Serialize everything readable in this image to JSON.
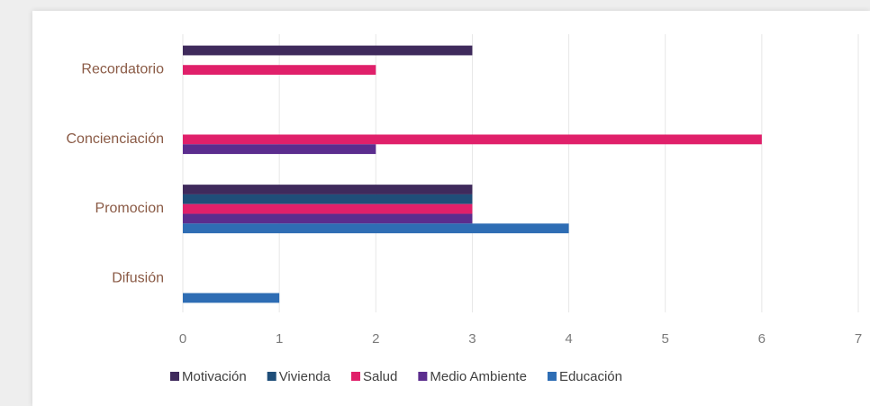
{
  "chart_data": {
    "type": "bar",
    "orientation": "horizontal",
    "categories": [
      "Recordatorio",
      "Concienciación",
      "Promocion",
      "Difusión"
    ],
    "series": [
      {
        "name": "Motivación",
        "color": "#3f2a5c",
        "values": [
          3,
          0,
          3,
          0
        ]
      },
      {
        "name": "Vivienda",
        "color": "#1f4e79",
        "values": [
          0,
          0,
          3,
          0
        ]
      },
      {
        "name": "Salud",
        "color": "#e0206a",
        "values": [
          2,
          6,
          3,
          0
        ]
      },
      {
        "name": "Medio Ambiente",
        "color": "#5b2d8e",
        "values": [
          0,
          2,
          3,
          0
        ]
      },
      {
        "name": "Educación",
        "color": "#2e6db4",
        "values": [
          0,
          0,
          4,
          1
        ]
      }
    ],
    "xlim": [
      0,
      7
    ],
    "xticks": [
      "0",
      "1",
      "2",
      "3",
      "4",
      "5",
      "6",
      "7"
    ],
    "grid": "vertical",
    "legend": "bottom"
  }
}
